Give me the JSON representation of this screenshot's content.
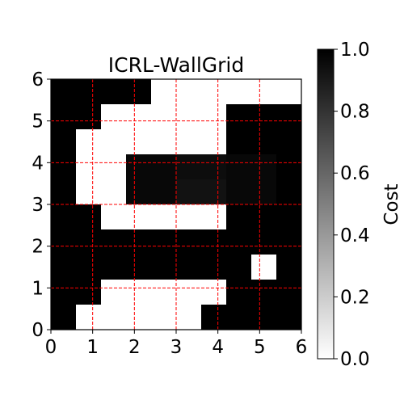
{
  "chart_data": {
    "type": "heatmap",
    "title": "ICRL-WallGrid",
    "xlim": [
      0,
      6
    ],
    "ylim": [
      0,
      6
    ],
    "x_ticks": [
      "0",
      "1",
      "2",
      "3",
      "4",
      "5",
      "6"
    ],
    "y_ticks": [
      "0",
      "1",
      "2",
      "3",
      "4",
      "5",
      "6"
    ],
    "grid": {
      "on": true,
      "color": "#ff0000",
      "style": "dashed"
    },
    "colormap": "gray_r",
    "colorbar": {
      "label": "Cost",
      "range": [
        0.0,
        1.0
      ],
      "ticks": [
        "0.0",
        "0.2",
        "0.4",
        "0.6",
        "0.8",
        "1.0"
      ]
    },
    "cell_size": 0.6,
    "rows_top_to_bottom": [
      [
        1.0,
        1.0,
        1.0,
        1.0,
        0.0,
        0.0,
        0.0,
        0.0,
        0.0,
        0.0
      ],
      [
        1.0,
        1.0,
        0.0,
        0.0,
        0.0,
        0.0,
        0.0,
        1.0,
        1.0,
        1.0
      ],
      [
        1.0,
        0.0,
        0.0,
        0.0,
        0.0,
        0.0,
        0.0,
        1.0,
        1.0,
        1.0
      ],
      [
        1.0,
        0.0,
        0.0,
        0.97,
        0.97,
        0.95,
        0.95,
        0.97,
        0.97,
        1.0
      ],
      [
        1.0,
        0.0,
        0.0,
        0.97,
        0.97,
        0.93,
        0.93,
        0.97,
        0.97,
        1.0
      ],
      [
        1.0,
        1.0,
        0.0,
        0.0,
        0.0,
        0.0,
        0.0,
        1.0,
        1.0,
        1.0
      ],
      [
        1.0,
        1.0,
        1.0,
        1.0,
        1.0,
        1.0,
        1.0,
        1.0,
        1.0,
        1.0
      ],
      [
        1.0,
        1.0,
        1.0,
        1.0,
        1.0,
        1.0,
        1.0,
        1.0,
        0.0,
        1.0
      ],
      [
        1.0,
        1.0,
        0.0,
        0.0,
        0.0,
        0.0,
        0.0,
        1.0,
        1.0,
        1.0
      ],
      [
        1.0,
        0.0,
        0.0,
        0.0,
        0.0,
        0.0,
        1.0,
        1.0,
        1.0,
        1.0
      ]
    ]
  }
}
